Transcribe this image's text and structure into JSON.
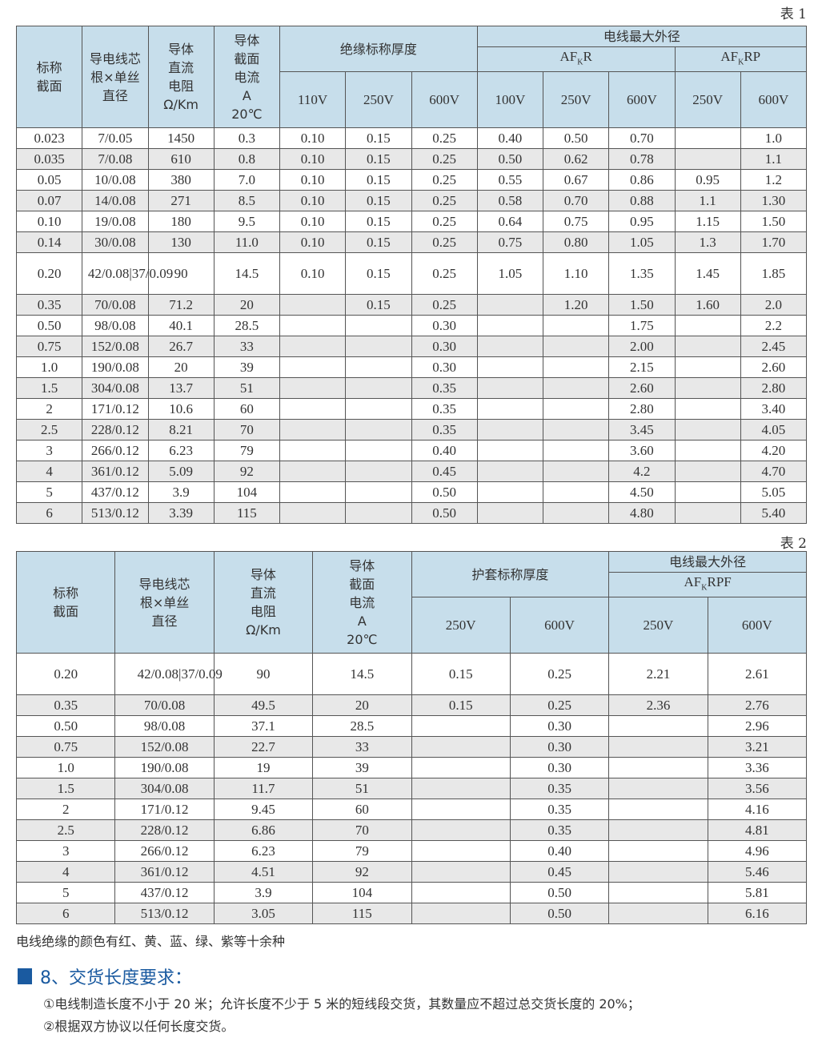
{
  "table1": {
    "label": "表 1",
    "headers": {
      "nominal_section": "标称截面",
      "strands": "导电线芯根×单丝直径",
      "resistance": [
        "导体",
        "直流",
        "电阻",
        "Ω/Km"
      ],
      "current": [
        "导体",
        "截面",
        "电流",
        "A",
        "20℃"
      ],
      "insulation_thickness": "绝缘标称厚度",
      "max_od": "电线最大外径",
      "afkr": {
        "pre": "AF",
        "sub": "K",
        "post": "R"
      },
      "afkrp": {
        "pre": "AF",
        "sub": "K",
        "post": "RP"
      },
      "voltages": [
        "110V",
        "250V",
        "600V",
        "100V",
        "250V",
        "600V",
        "250V",
        "600V"
      ]
    },
    "rows": [
      [
        "0.023",
        "7/0.05",
        "1450",
        "0.3",
        "0.10",
        "0.15",
        "0.25",
        "0.40",
        "0.50",
        "0.70",
        "",
        "1.0"
      ],
      [
        "0.035",
        "7/0.08",
        "610",
        "0.8",
        "0.10",
        "0.15",
        "0.25",
        "0.50",
        "0.62",
        "0.78",
        "",
        "1.1"
      ],
      [
        "0.05",
        "10/0.08",
        "380",
        "7.0",
        "0.10",
        "0.15",
        "0.25",
        "0.55",
        "0.67",
        "0.86",
        "0.95",
        "1.2"
      ],
      [
        "0.07",
        "14/0.08",
        "271",
        "8.5",
        "0.10",
        "0.15",
        "0.25",
        "0.58",
        "0.70",
        "0.88",
        "1.1",
        "1.30"
      ],
      [
        "0.10",
        "19/0.08",
        "180",
        "9.5",
        "0.10",
        "0.15",
        "0.25",
        "0.64",
        "0.75",
        "0.95",
        "1.15",
        "1.50"
      ],
      [
        "0.14",
        "30/0.08",
        "130",
        "11.0",
        "0.10",
        "0.15",
        "0.25",
        "0.75",
        "0.80",
        "1.05",
        "1.3",
        "1.70"
      ],
      [
        "0.20",
        "42/0.08|37/0.09",
        "90",
        "14.5",
        "0.10",
        "0.15",
        "0.25",
        "1.05",
        "1.10",
        "1.35",
        "1.45",
        "1.85"
      ],
      [
        "0.35",
        "70/0.08",
        "71.2",
        "20",
        "",
        "0.15",
        "0.25",
        "",
        "1.20",
        "1.50",
        "1.60",
        "2.0"
      ],
      [
        "0.50",
        "98/0.08",
        "40.1",
        "28.5",
        "",
        "",
        "0.30",
        "",
        "",
        "1.75",
        "",
        "2.2"
      ],
      [
        "0.75",
        "152/0.08",
        "26.7",
        "33",
        "",
        "",
        "0.30",
        "",
        "",
        "2.00",
        "",
        "2.45"
      ],
      [
        "1.0",
        "190/0.08",
        "20",
        "39",
        "",
        "",
        "0.30",
        "",
        "",
        "2.15",
        "",
        "2.60"
      ],
      [
        "1.5",
        "304/0.08",
        "13.7",
        "51",
        "",
        "",
        "0.35",
        "",
        "",
        "2.60",
        "",
        "2.80"
      ],
      [
        "2",
        "171/0.12",
        "10.6",
        "60",
        "",
        "",
        "0.35",
        "",
        "",
        "2.80",
        "",
        "3.40"
      ],
      [
        "2.5",
        "228/0.12",
        "8.21",
        "70",
        "",
        "",
        "0.35",
        "",
        "",
        "3.45",
        "",
        "4.05"
      ],
      [
        "3",
        "266/0.12",
        "6.23",
        "79",
        "",
        "",
        "0.40",
        "",
        "",
        "3.60",
        "",
        "4.20"
      ],
      [
        "4",
        "361/0.12",
        "5.09",
        "92",
        "",
        "",
        "0.45",
        "",
        "",
        "4.2",
        "",
        "4.70"
      ],
      [
        "5",
        "437/0.12",
        "3.9",
        "104",
        "",
        "",
        "0.50",
        "",
        "",
        "4.50",
        "",
        "5.05"
      ],
      [
        "6",
        "513/0.12",
        "3.39",
        "115",
        "",
        "",
        "0.50",
        "",
        "",
        "4.80",
        "",
        "5.40"
      ]
    ]
  },
  "table2": {
    "label": "表 2",
    "headers": {
      "nominal_section": "标称截面",
      "strands": "导电线芯根×单丝直径",
      "resistance": [
        "导体",
        "直流",
        "电阻",
        "Ω/Km"
      ],
      "current": [
        "导体",
        "截面",
        "电流",
        "A",
        "20℃"
      ],
      "sheath_thickness": "护套标称厚度",
      "max_od": "电线最大外径",
      "afkrpf": {
        "pre": "AF",
        "sub": "K",
        "post": "RPF"
      },
      "voltages": [
        "250V",
        "600V",
        "250V",
        "600V"
      ]
    },
    "rows": [
      [
        "0.20",
        "42/0.08|37/0.09",
        "90",
        "14.5",
        "0.15",
        "0.25",
        "2.21",
        "2.61"
      ],
      [
        "0.35",
        "70/0.08",
        "49.5",
        "20",
        "0.15",
        "0.25",
        "2.36",
        "2.76"
      ],
      [
        "0.50",
        "98/0.08",
        "37.1",
        "28.5",
        "",
        "0.30",
        "",
        "2.96"
      ],
      [
        "0.75",
        "152/0.08",
        "22.7",
        "33",
        "",
        "0.30",
        "",
        "3.21"
      ],
      [
        "1.0",
        "190/0.08",
        "19",
        "39",
        "",
        "0.30",
        "",
        "3.36"
      ],
      [
        "1.5",
        "304/0.08",
        "11.7",
        "51",
        "",
        "0.35",
        "",
        "3.56"
      ],
      [
        "2",
        "171/0.12",
        "9.45",
        "60",
        "",
        "0.35",
        "",
        "4.16"
      ],
      [
        "2.5",
        "228/0.12",
        "6.86",
        "70",
        "",
        "0.35",
        "",
        "4.81"
      ],
      [
        "3",
        "266/0.12",
        "6.23",
        "79",
        "",
        "0.40",
        "",
        "4.96"
      ],
      [
        "4",
        "361/0.12",
        "4.51",
        "92",
        "",
        "0.45",
        "",
        "5.46"
      ],
      [
        "5",
        "437/0.12",
        "3.9",
        "104",
        "",
        "0.50",
        "",
        "5.81"
      ],
      [
        "6",
        "513/0.12",
        "3.05",
        "115",
        "",
        "0.50",
        "",
        "6.16"
      ]
    ]
  },
  "note": "电线绝缘的颜色有红、黄、蓝、绿、紫等十余种",
  "section8": {
    "title": "8、交货长度要求：",
    "items": [
      "①电线制造长度不小于 20 米；允许长度不少于 5 米的短线段交货，其数量应不超过总交货长度的 20%；",
      "②根据双方协议以任何长度交货。"
    ]
  },
  "colors": {
    "header_bg": "#c7deeb",
    "stripe": "#e8e8e8",
    "accent": "#1a5aa0"
  }
}
